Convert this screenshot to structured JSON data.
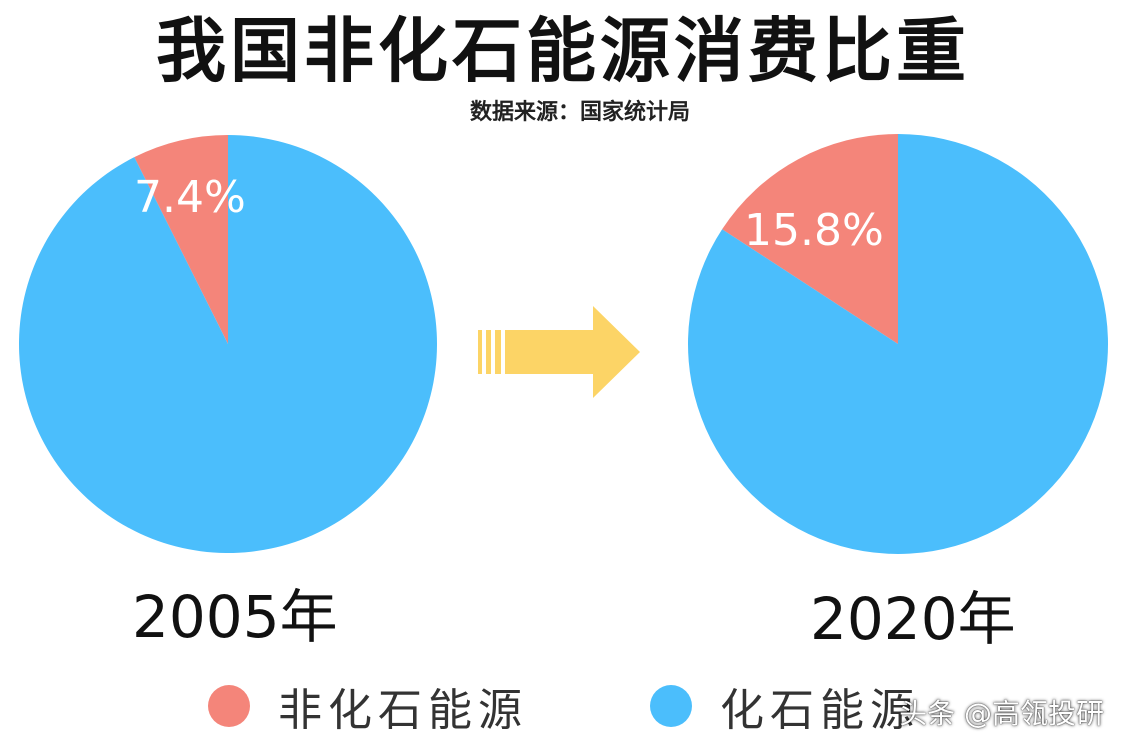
{
  "title": "我国非化石能源消费比重",
  "source": "数据来源：国家统计局",
  "colors": {
    "non_fossil": "#f4857a",
    "fossil": "#4bbefc",
    "arrow": "#fcd466"
  },
  "chart_data": [
    {
      "type": "pie",
      "year_label": "2005年",
      "categories": [
        "非化石能源",
        "化石能源"
      ],
      "values": [
        7.4,
        92.6
      ],
      "data_label": "7.4%"
    },
    {
      "type": "pie",
      "year_label": "2020年",
      "categories": [
        "非化石能源",
        "化石能源"
      ],
      "values": [
        15.8,
        84.2
      ],
      "data_label": "15.8%"
    }
  ],
  "legend": [
    {
      "label": "非化石能源",
      "color": "#f4857a"
    },
    {
      "label": "化石能源",
      "color": "#4bbefc"
    }
  ],
  "watermark": "头条 @高瓴投研"
}
